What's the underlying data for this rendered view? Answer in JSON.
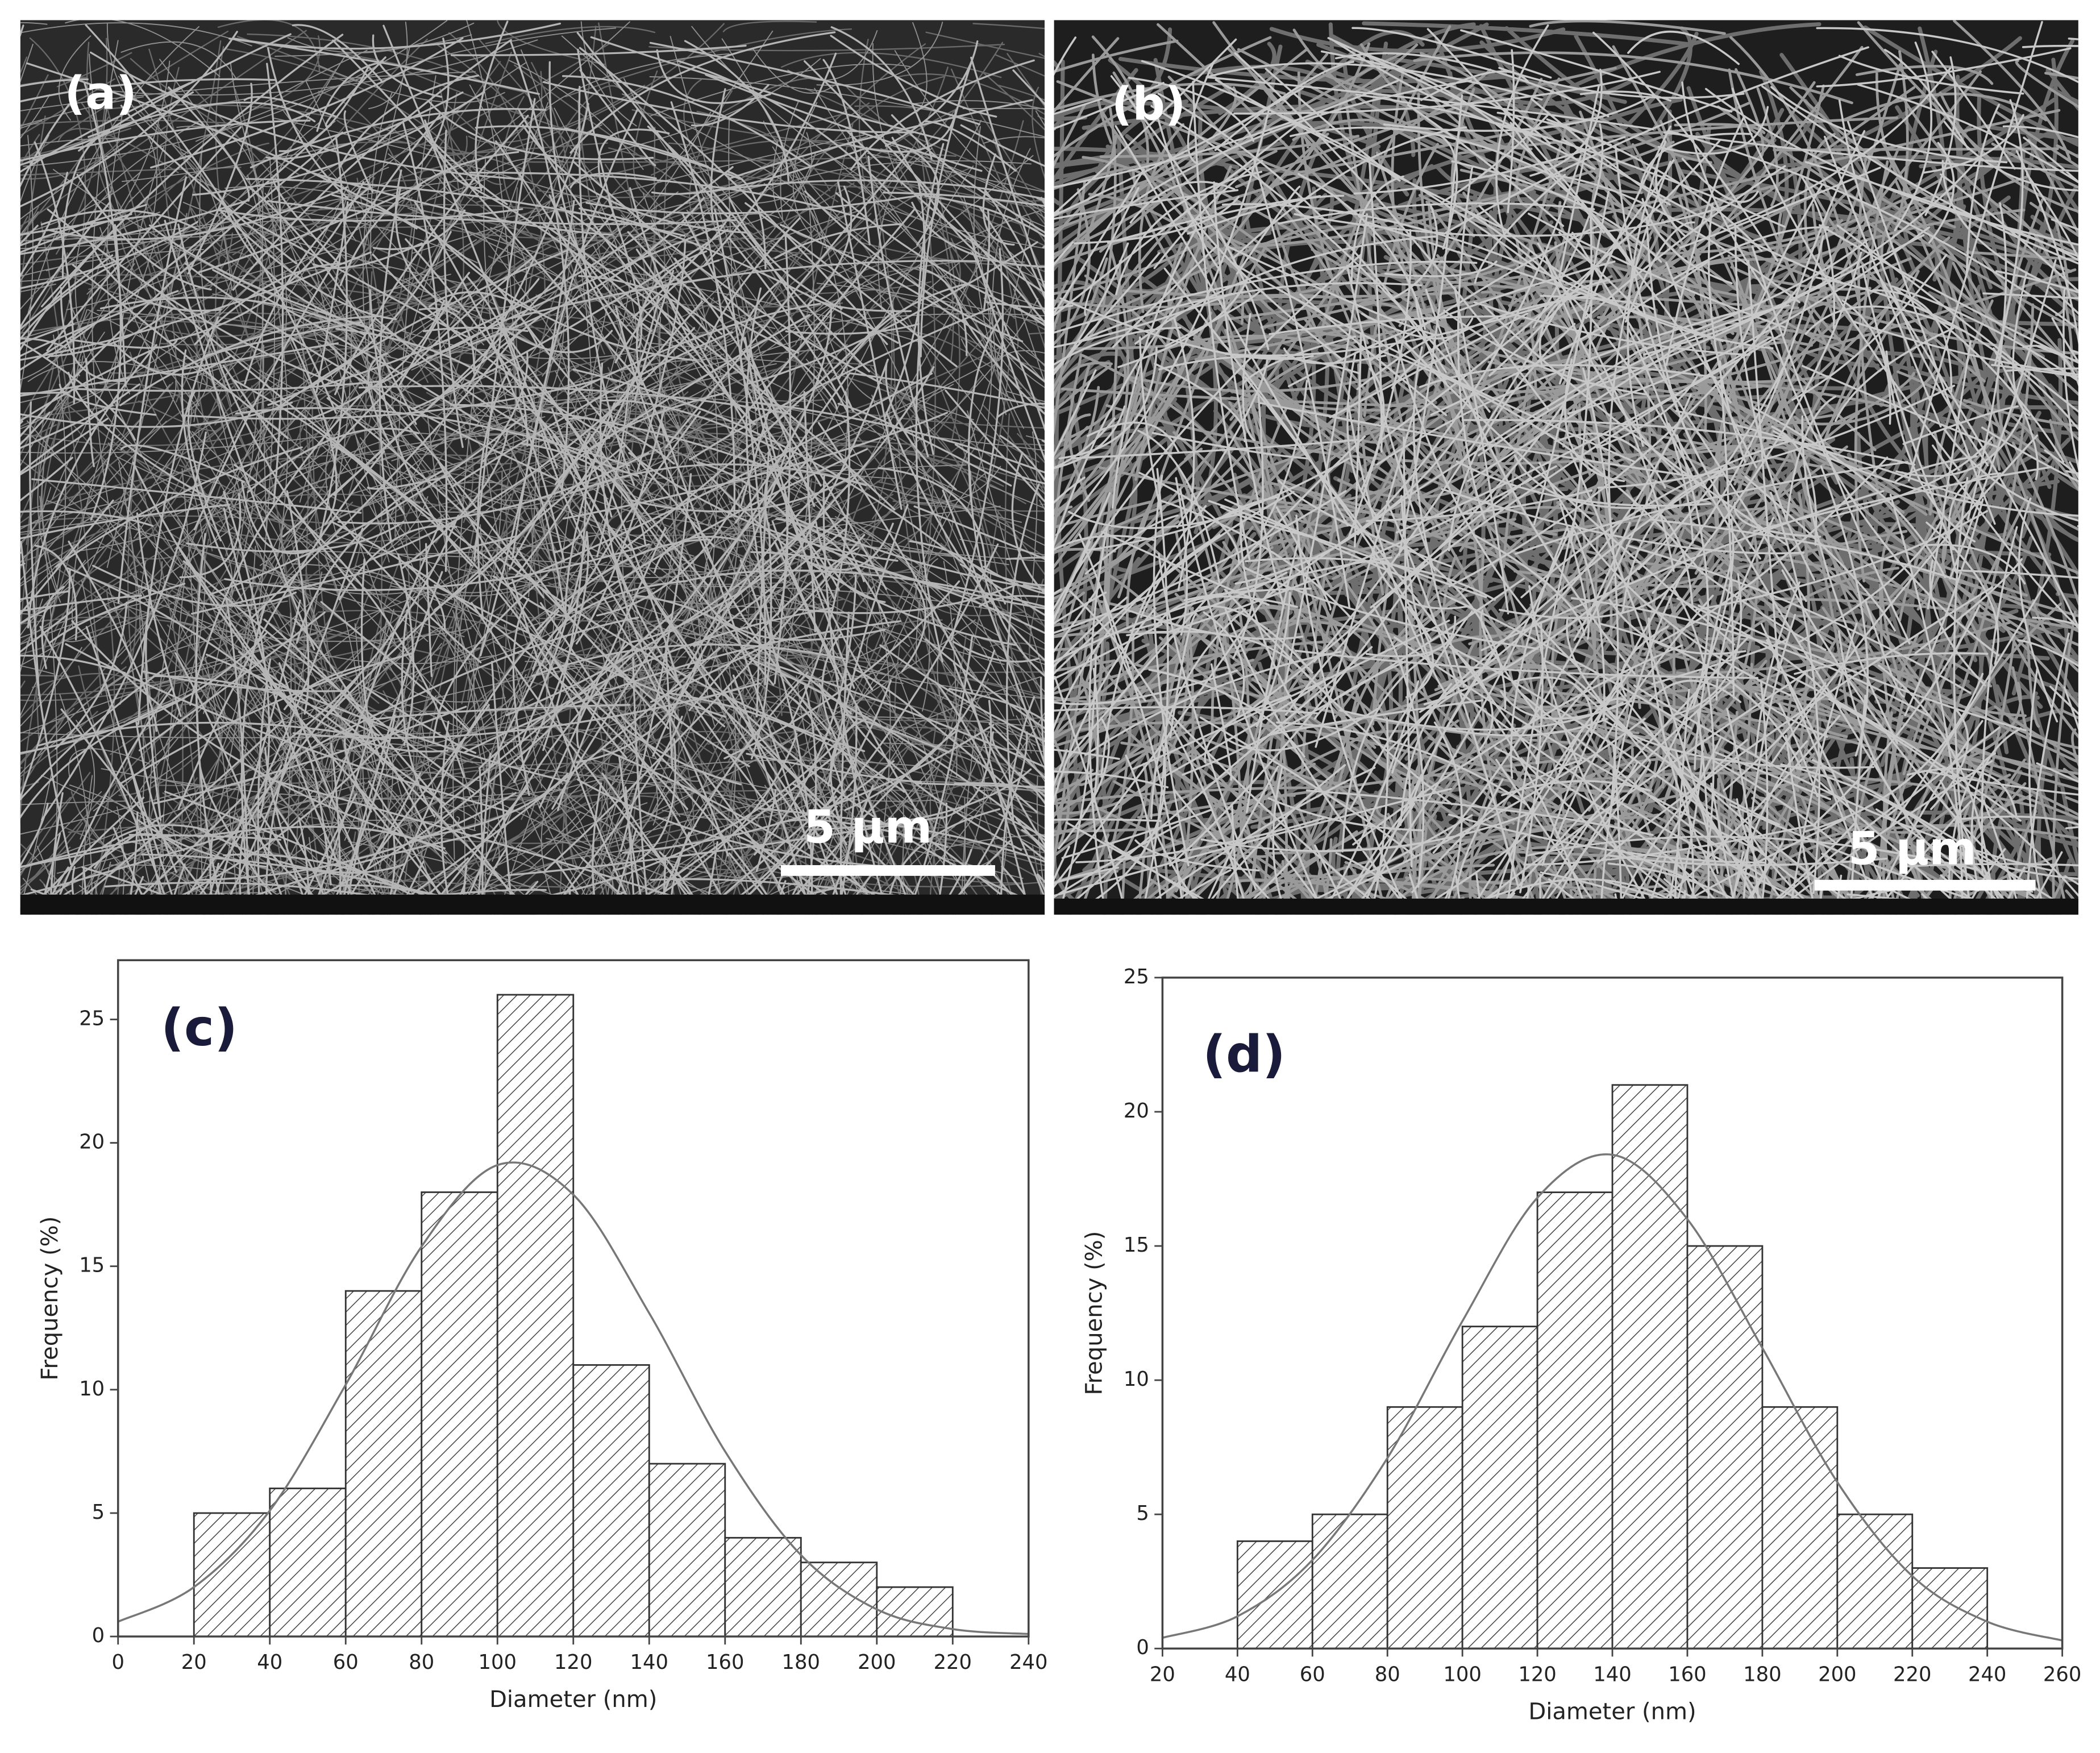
{
  "panels": [
    {
      "label": "(a)",
      "scale_bar": "5 µm"
    },
    {
      "label": "(b)",
      "scale_bar": "5 µm"
    }
  ],
  "chart_data": [
    {
      "type": "histogram",
      "label": "(c)",
      "xlabel": "Diameter (nm)",
      "ylabel": "Frequency (%)",
      "bins": [
        20,
        40,
        60,
        80,
        100,
        120,
        140,
        160,
        180,
        200,
        220
      ],
      "values": [
        5,
        6,
        14,
        18,
        26,
        11,
        7,
        4,
        3,
        2
      ],
      "xlim": [
        0,
        240
      ],
      "xticks": [
        0,
        20,
        40,
        60,
        80,
        100,
        120,
        140,
        160,
        180,
        200,
        220,
        240
      ],
      "ylim": [
        0,
        27.4
      ],
      "yticks": [
        0,
        5,
        10,
        15,
        20,
        25
      ],
      "curve": {
        "x": [
          0,
          20,
          40,
          60,
          80,
          100,
          120,
          140,
          160,
          180,
          200,
          220,
          240
        ],
        "values": [
          0.6,
          2.0,
          5.1,
          10.2,
          15.8,
          19.1,
          17.9,
          13.1,
          7.5,
          3.3,
          1.1,
          0.3,
          0.1
        ]
      }
    },
    {
      "type": "histogram",
      "label": "(d)",
      "xlabel": "Diameter (nm)",
      "ylabel": "Frequency (%)",
      "bins": [
        40,
        60,
        80,
        100,
        120,
        140,
        160,
        180,
        200,
        220,
        240
      ],
      "values": [
        4,
        5,
        9,
        12,
        17,
        21,
        15,
        9,
        5,
        3
      ],
      "xlim": [
        20,
        260
      ],
      "xticks": [
        20,
        40,
        60,
        80,
        100,
        120,
        140,
        160,
        180,
        200,
        220,
        240,
        260
      ],
      "ylim": [
        0,
        25
      ],
      "yticks": [
        0,
        5,
        10,
        15,
        20,
        25
      ],
      "curve": {
        "x": [
          20,
          40,
          60,
          80,
          100,
          120,
          140,
          160,
          180,
          200,
          220,
          240,
          260
        ],
        "values": [
          0.4,
          1.2,
          3.3,
          7.1,
          12.2,
          16.8,
          18.4,
          16.0,
          11.2,
          6.2,
          2.7,
          1.0,
          0.3
        ]
      }
    }
  ]
}
